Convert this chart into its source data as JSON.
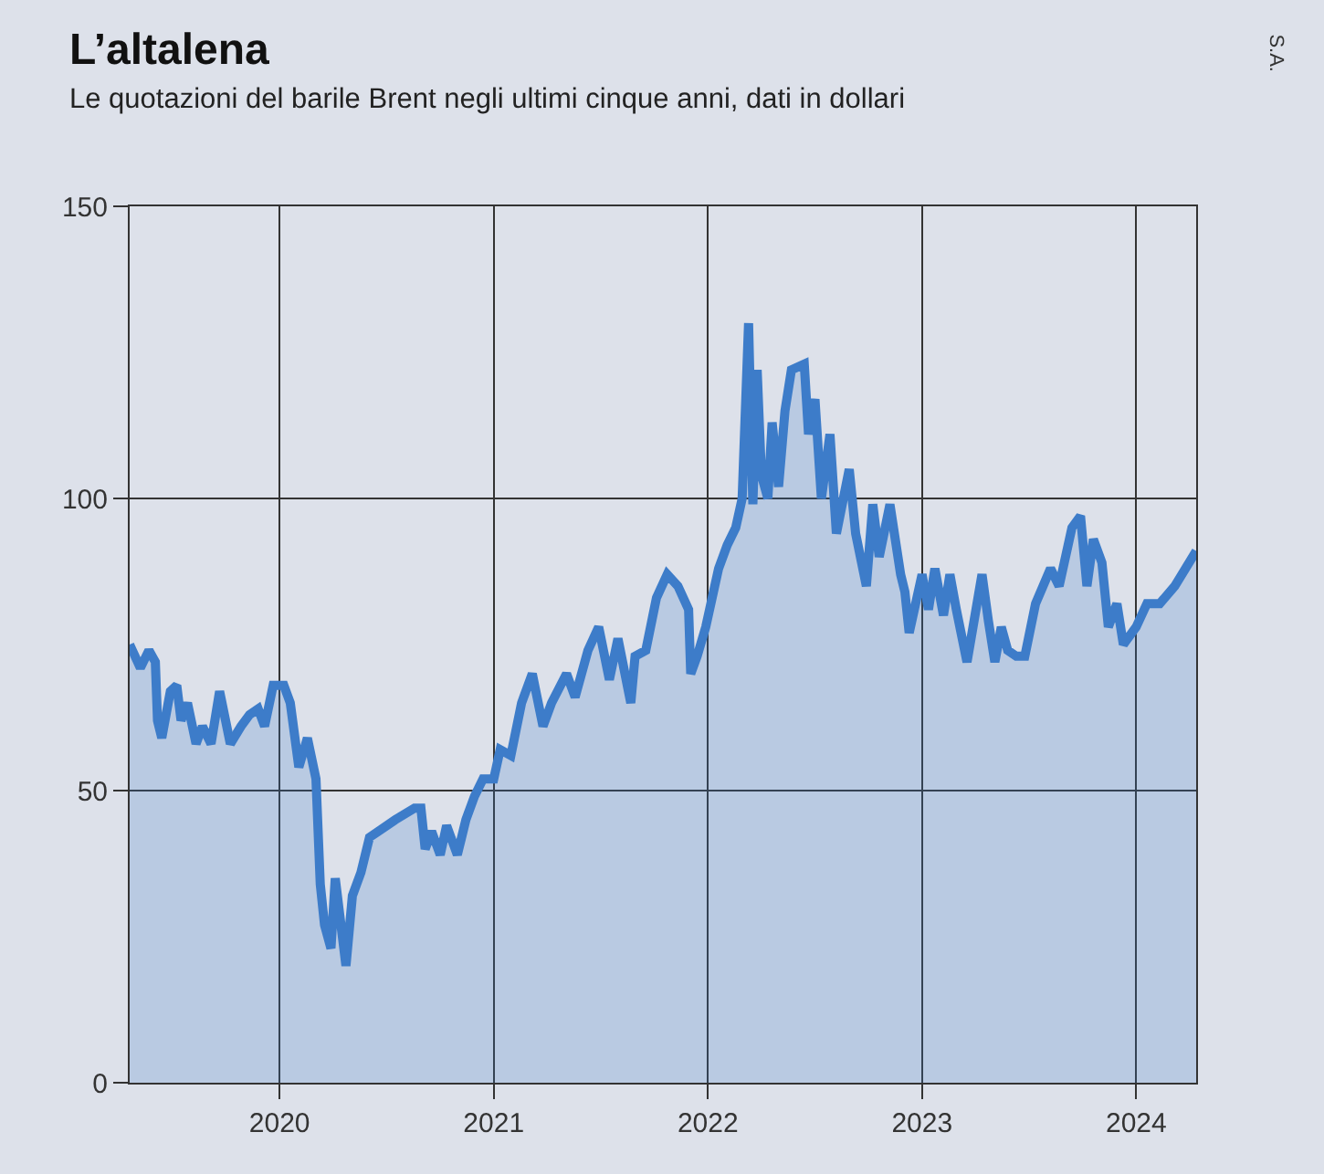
{
  "chart_data": {
    "type": "area",
    "title": "L’altalena",
    "subtitle": "Le quotazioni del barile Brent negli ultimi cinque anni, dati in dollari",
    "annotations": [
      "S.A."
    ],
    "x": [
      2019.3,
      2019.35,
      2019.39,
      2019.42,
      2019.43,
      2019.45,
      2019.49,
      2019.52,
      2019.54,
      2019.57,
      2019.61,
      2019.64,
      2019.68,
      2019.72,
      2019.77,
      2019.82,
      2019.86,
      2019.9,
      2019.93,
      2019.97,
      2020.02,
      2020.05,
      2020.09,
      2020.13,
      2020.17,
      2020.19,
      2020.21,
      2020.24,
      2020.26,
      2020.31,
      2020.34,
      2020.38,
      2020.42,
      2020.46,
      2020.54,
      2020.63,
      2020.66,
      2020.68,
      2020.71,
      2020.75,
      2020.78,
      2020.83,
      2020.87,
      2020.91,
      2020.95,
      2021.0,
      2021.03,
      2021.08,
      2021.13,
      2021.18,
      2021.23,
      2021.27,
      2021.34,
      2021.38,
      2021.44,
      2021.49,
      2021.54,
      2021.58,
      2021.64,
      2021.66,
      2021.71,
      2021.76,
      2021.81,
      2021.86,
      2021.91,
      2021.92,
      2021.95,
      2021.99,
      2022.05,
      2022.09,
      2022.13,
      2022.16,
      2022.19,
      2022.21,
      2022.23,
      2022.25,
      2022.28,
      2022.3,
      2022.33,
      2022.36,
      2022.39,
      2022.45,
      2022.47,
      2022.5,
      2022.53,
      2022.57,
      2022.6,
      2022.66,
      2022.69,
      2022.74,
      2022.77,
      2022.8,
      2022.85,
      2022.9,
      2022.92,
      2022.94,
      2023.0,
      2023.03,
      2023.06,
      2023.1,
      2023.13,
      2023.16,
      2023.21,
      2023.28,
      2023.31,
      2023.34,
      2023.37,
      2023.4,
      2023.44,
      2023.48,
      2023.53,
      2023.6,
      2023.64,
      2023.7,
      2023.74,
      2023.77,
      2023.8,
      2023.84,
      2023.87,
      2023.91,
      2023.94,
      2024.0,
      2024.05,
      2024.11,
      2024.18,
      2024.28
    ],
    "series": [
      {
        "color": "#3d7cc9",
        "values": [
          75,
          71,
          74,
          72,
          62,
          59,
          67,
          68,
          62,
          65,
          58,
          61,
          58,
          67,
          58,
          61,
          63,
          64,
          61,
          68,
          68,
          65,
          54,
          59,
          52,
          34,
          27,
          23,
          35,
          20,
          32,
          36,
          42,
          43,
          45,
          47,
          47,
          40,
          43,
          39,
          44,
          39,
          45,
          49,
          52,
          52,
          57,
          56,
          65,
          70,
          61,
          65,
          70,
          66,
          74,
          78,
          69,
          76,
          65,
          73,
          74,
          83,
          87,
          85,
          81,
          70,
          73,
          78,
          88,
          92,
          95,
          100,
          130,
          99,
          122,
          104,
          100,
          113,
          102,
          115,
          122,
          123,
          111,
          117,
          100,
          111,
          94,
          105,
          94,
          85,
          99,
          90,
          99,
          87,
          84,
          77,
          87,
          81,
          88,
          80,
          87,
          81,
          72,
          87,
          79,
          72,
          78,
          74,
          73,
          73,
          82,
          88,
          85,
          95,
          97,
          85,
          93,
          89,
          78,
          82,
          75,
          78,
          82,
          82,
          85,
          91
        ]
      }
    ],
    "xlim": [
      2019.3,
      2024.28
    ],
    "xticks": [
      2020,
      2021,
      2022,
      2023,
      2024
    ],
    "ylim": [
      0,
      150
    ],
    "yticks": [
      0,
      50,
      100,
      150
    ],
    "grid": true
  }
}
